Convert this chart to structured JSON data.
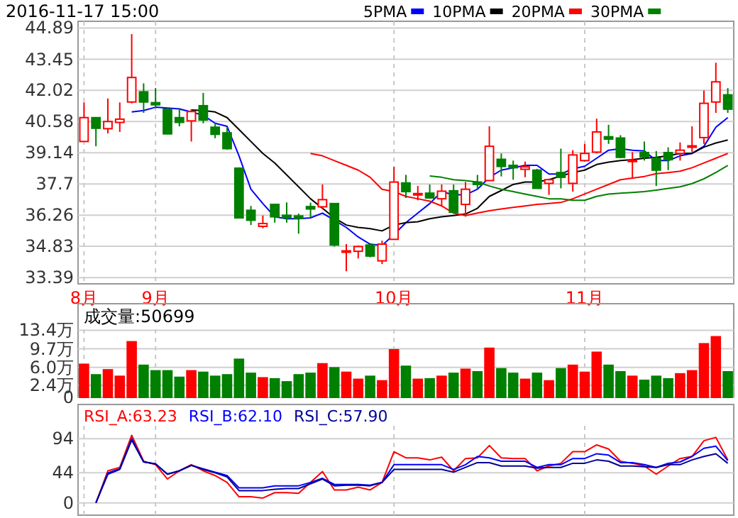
{
  "chart_data": [
    {
      "type": "candlestick",
      "title": "2016-11-17 15:00",
      "legend": "top",
      "grid": true,
      "categories": [
        "8月",
        null,
        null,
        null,
        null,
        null,
        "9月",
        null,
        null,
        null,
        null,
        null,
        null,
        null,
        null,
        null,
        null,
        null,
        null,
        null,
        null,
        null,
        null,
        null,
        null,
        null,
        "10月",
        null,
        null,
        null,
        null,
        null,
        null,
        null,
        null,
        null,
        null,
        null,
        null,
        null,
        null,
        null,
        "11月",
        null,
        null,
        null,
        null,
        null,
        null,
        null,
        null,
        null,
        null,
        null,
        null
      ],
      "ylim": [
        33.1,
        45.2
      ],
      "yticks": [
        33.39,
        34.83,
        36.26,
        37.7,
        39.14,
        40.58,
        42.02,
        43.45,
        44.89
      ],
      "ohlc": [
        [
          39.66,
          41.46,
          39.66,
          40.76
        ],
        [
          40.76,
          40.76,
          39.44,
          40.27
        ],
        [
          40.25,
          41.64,
          40.03,
          40.58
        ],
        [
          40.54,
          41.46,
          40.1,
          40.69
        ],
        [
          41.48,
          44.61,
          41.42,
          42.61
        ],
        [
          41.95,
          42.34,
          40.98,
          41.48
        ],
        [
          41.45,
          42.12,
          41.2,
          41.35
        ],
        [
          41.15,
          41.2,
          39.99,
          40.01
        ],
        [
          40.76,
          41.2,
          40.36,
          40.54
        ],
        [
          40.61,
          41.15,
          39.66,
          41.04
        ],
        [
          41.31,
          41.9,
          40.5,
          40.65
        ],
        [
          40.32,
          40.5,
          39.81,
          39.99
        ],
        [
          40.06,
          40.32,
          39.28,
          39.33
        ],
        [
          38.43,
          38.47,
          36.14,
          36.14
        ],
        [
          36.49,
          36.69,
          35.81,
          36.03
        ],
        [
          35.75,
          36.25,
          35.66,
          35.88
        ],
        [
          36.76,
          36.76,
          35.92,
          36.19
        ],
        [
          36.26,
          36.85,
          35.92,
          36.15
        ],
        [
          36.23,
          36.34,
          35.41,
          36.12
        ],
        [
          36.66,
          36.84,
          36.14,
          36.55
        ],
        [
          36.65,
          37.68,
          36.54,
          36.98
        ],
        [
          36.8,
          36.8,
          34.82,
          34.89
        ],
        [
          34.58,
          34.93,
          33.68,
          34.62
        ],
        [
          34.6,
          34.87,
          34.27,
          34.82
        ],
        [
          34.89,
          34.93,
          34.32,
          34.38
        ],
        [
          34.16,
          35.09,
          34.01,
          34.93
        ],
        [
          35.15,
          38.49,
          35.15,
          37.79
        ],
        [
          37.75,
          38.12,
          37.06,
          37.35
        ],
        [
          37.22,
          37.61,
          36.95,
          37.26
        ],
        [
          37.28,
          37.68,
          37.02,
          37.06
        ],
        [
          37.02,
          37.68,
          36.69,
          37.37
        ],
        [
          37.39,
          37.68,
          36.36,
          36.4
        ],
        [
          36.76,
          37.79,
          36.2,
          37.46
        ],
        [
          37.79,
          38.12,
          37.46,
          37.68
        ],
        [
          37.86,
          40.36,
          37.86,
          39.44
        ],
        [
          38.84,
          39.11,
          38.05,
          38.51
        ],
        [
          38.56,
          38.78,
          37.9,
          38.45
        ],
        [
          38.38,
          38.73,
          38.01,
          38.49
        ],
        [
          38.34,
          38.4,
          37.5,
          37.5
        ],
        [
          37.73,
          37.95,
          37.2,
          37.9
        ],
        [
          38.23,
          39.33,
          37.5,
          38.01
        ],
        [
          37.73,
          39.26,
          37.35,
          39.04
        ],
        [
          38.78,
          39.55,
          38.73,
          39.11
        ],
        [
          39.17,
          40.71,
          39.11,
          40.1
        ],
        [
          39.88,
          40.43,
          39.55,
          39.77
        ],
        [
          39.82,
          39.95,
          38.89,
          38.93
        ],
        [
          38.76,
          39.17,
          37.94,
          38.8
        ],
        [
          39.15,
          39.66,
          38.78,
          38.95
        ],
        [
          38.89,
          39.22,
          37.61,
          38.34
        ],
        [
          39.15,
          39.39,
          38.34,
          38.82
        ],
        [
          39.11,
          39.62,
          38.78,
          39.26
        ],
        [
          39.42,
          40.36,
          39.17,
          39.46
        ],
        [
          39.84,
          42.01,
          39.55,
          41.42
        ],
        [
          41.48,
          43.29,
          40.98,
          42.41
        ],
        [
          41.81,
          42.12,
          40.98,
          41.15
        ]
      ],
      "colors": [
        "#ff0000",
        "#008000",
        "#ff0000",
        "#ff0000",
        "#ff0000",
        "#008000",
        "#008000",
        "#008000",
        "#008000",
        "#ff0000",
        "#008000",
        "#008000",
        "#008000",
        "#008000",
        "#008000",
        "#ff0000",
        "#008000",
        "#008000",
        "#008000",
        "#008000",
        "#ff0000",
        "#008000",
        "#ff0000",
        "#ff0000",
        "#008000",
        "#ff0000",
        "#ff0000",
        "#008000",
        "#ff0000",
        "#008000",
        "#ff0000",
        "#008000",
        "#ff0000",
        "#008000",
        "#ff0000",
        "#008000",
        "#008000",
        "#ff0000",
        "#008000",
        "#ff0000",
        "#008000",
        "#ff0000",
        "#ff0000",
        "#ff0000",
        "#008000",
        "#008000",
        "#ff0000",
        "#008000",
        "#008000",
        "#008000",
        "#ff0000",
        "#ff0000",
        "#ff0000",
        "#ff0000",
        "#008000"
      ],
      "series": [
        {
          "name": "5PMA",
          "type": "line",
          "color": "#0000ff",
          "values": [
            null,
            null,
            null,
            null,
            41.02,
            41.09,
            41.24,
            41.2,
            41.16,
            41.02,
            40.87,
            40.5,
            40.36,
            39.0,
            37.46,
            36.8,
            36.19,
            36.1,
            36.1,
            36.14,
            36.36,
            36.03,
            35.7,
            35.26,
            34.93,
            34.87,
            35.37,
            35.92,
            36.36,
            36.8,
            37.35,
            37.2,
            37.2,
            37.46,
            38.01,
            38.34,
            38.45,
            38.56,
            38.56,
            38.16,
            38.16,
            38.4,
            38.52,
            38.89,
            39.26,
            39.33,
            39.26,
            39.22,
            38.78,
            38.78,
            39.0,
            39.11,
            39.44,
            40.32,
            40.76
          ]
        },
        {
          "name": "10PMA",
          "type": "line",
          "color": "#000000",
          "values": [
            null,
            null,
            null,
            null,
            null,
            null,
            null,
            null,
            null,
            41.11,
            41.09,
            41.02,
            40.76,
            40.21,
            39.66,
            39.11,
            38.67,
            38.12,
            37.57,
            37.02,
            36.58,
            36.14,
            35.81,
            35.7,
            35.64,
            35.54,
            35.81,
            35.92,
            35.96,
            36.1,
            36.19,
            36.25,
            36.32,
            36.58,
            37.13,
            37.4,
            37.68,
            37.79,
            37.79,
            37.9,
            38.07,
            38.23,
            38.34,
            38.6,
            38.71,
            38.78,
            38.82,
            38.89,
            38.93,
            39.0,
            39.11,
            39.11,
            39.4,
            39.59,
            39.73
          ]
        },
        {
          "name": "20PMA",
          "type": "line",
          "color": "#ff0000",
          "values": [
            null,
            null,
            null,
            null,
            null,
            null,
            null,
            null,
            null,
            null,
            null,
            null,
            null,
            null,
            null,
            null,
            null,
            null,
            null,
            39.11,
            39.0,
            38.78,
            38.56,
            38.34,
            38.01,
            37.46,
            37.35,
            37.13,
            37.02,
            36.91,
            36.69,
            36.36,
            36.25,
            36.36,
            36.47,
            36.55,
            36.62,
            36.69,
            36.76,
            36.8,
            36.85,
            37.02,
            37.24,
            37.46,
            37.68,
            37.9,
            37.97,
            38.05,
            38.18,
            38.23,
            38.29,
            38.45,
            38.67,
            38.89,
            39.11
          ]
        },
        {
          "name": "30PMA",
          "type": "line",
          "color": "#008000",
          "values": [
            null,
            null,
            null,
            null,
            null,
            null,
            null,
            null,
            null,
            null,
            null,
            null,
            null,
            null,
            null,
            null,
            null,
            null,
            null,
            null,
            null,
            null,
            null,
            null,
            null,
            null,
            null,
            null,
            null,
            38.07,
            38.01,
            37.9,
            37.86,
            37.79,
            37.61,
            37.46,
            37.35,
            37.24,
            37.13,
            37.02,
            37.02,
            36.95,
            36.95,
            37.13,
            37.24,
            37.28,
            37.31,
            37.35,
            37.42,
            37.5,
            37.57,
            37.72,
            37.94,
            38.23,
            38.56
          ]
        }
      ]
    },
    {
      "type": "bar",
      "grid": true,
      "tick_labels": "y",
      "annotations": [
        "成交量:50699"
      ],
      "categories": [
        null,
        null,
        null,
        null,
        null,
        null,
        null,
        null,
        null,
        null,
        null,
        null,
        null,
        null,
        null,
        null,
        null,
        null,
        null,
        null,
        null,
        null,
        null,
        null,
        null,
        null,
        null,
        null,
        null,
        null,
        null,
        null,
        null,
        null,
        null,
        null,
        null,
        null,
        null,
        null,
        null,
        null,
        null,
        null,
        null,
        null,
        null,
        null,
        null,
        null,
        null,
        null,
        null,
        null,
        null
      ],
      "ylim": [
        0,
        13.6
      ],
      "yticks": [
        0,
        {
          "value": 2.4,
          "label": "2.4万"
        },
        {
          "value": 6.0,
          "label": "6.0万"
        },
        {
          "value": 9.7,
          "label": "9.7万"
        },
        {
          "value": 13.4,
          "label": "13.4万"
        }
      ],
      "values": [
        6.6,
        4.5,
        5.5,
        4.2,
        11.1,
        6.4,
        5.3,
        5.3,
        4.0,
        5.3,
        5.0,
        4.2,
        4.5,
        7.6,
        4.8,
        3.9,
        3.7,
        3.1,
        4.5,
        4.8,
        6.7,
        5.9,
        5.0,
        3.6,
        4.2,
        3.3,
        9.5,
        6.2,
        3.6,
        3.7,
        4.2,
        4.8,
        5.6,
        5.1,
        9.8,
        5.7,
        4.8,
        3.6,
        4.8,
        3.3,
        5.7,
        6.4,
        5.0,
        9.0,
        6.4,
        5.1,
        4.2,
        3.4,
        4.2,
        3.7,
        4.7,
        5.3,
        10.7,
        12.1,
        5.1
      ],
      "colors": [
        "#ff0000",
        "#008000",
        "#ff0000",
        "#ff0000",
        "#ff0000",
        "#008000",
        "#008000",
        "#008000",
        "#008000",
        "#ff0000",
        "#008000",
        "#008000",
        "#008000",
        "#008000",
        "#008000",
        "#ff0000",
        "#008000",
        "#008000",
        "#008000",
        "#008000",
        "#ff0000",
        "#008000",
        "#ff0000",
        "#ff0000",
        "#008000",
        "#ff0000",
        "#ff0000",
        "#008000",
        "#ff0000",
        "#008000",
        "#ff0000",
        "#008000",
        "#ff0000",
        "#008000",
        "#ff0000",
        "#008000",
        "#008000",
        "#ff0000",
        "#008000",
        "#ff0000",
        "#008000",
        "#ff0000",
        "#ff0000",
        "#ff0000",
        "#008000",
        "#008000",
        "#ff0000",
        "#008000",
        "#008000",
        "#008000",
        "#ff0000",
        "#ff0000",
        "#ff0000",
        "#ff0000",
        "#008000"
      ]
    },
    {
      "type": "line",
      "grid": true,
      "tick_labels": "y",
      "legend": "top left",
      "categories": [
        null,
        null,
        null,
        null,
        null,
        null,
        null,
        null,
        null,
        null,
        null,
        null,
        null,
        null,
        null,
        null,
        null,
        null,
        null,
        null,
        null,
        null,
        null,
        null,
        null,
        null,
        null,
        null,
        null,
        null,
        null,
        null,
        null,
        null,
        null,
        null,
        null,
        null,
        null,
        null,
        null,
        null,
        null,
        null,
        null,
        null,
        null,
        null,
        null,
        null,
        null,
        null,
        null,
        null,
        null
      ],
      "ylim": [
        -18,
        113
      ],
      "yticks": [
        0,
        44,
        94
      ],
      "series": [
        {
          "name": "RSI_A:63.23",
          "color": "#ff0000",
          "values": [
            null,
            0,
            47,
            52,
            99,
            61,
            56,
            35,
            47,
            56,
            47,
            40,
            30,
            9,
            9,
            7,
            15,
            15,
            14,
            30,
            46,
            19,
            19,
            23,
            19,
            30,
            75,
            66,
            66,
            63,
            67,
            47,
            65,
            66,
            84,
            66,
            65,
            65,
            47,
            54,
            58,
            75,
            75,
            85,
            79,
            61,
            58,
            54,
            42,
            54,
            65,
            68,
            91,
            96,
            63
          ]
        },
        {
          "name": "RSI_B:62.10",
          "color": "#0000ff",
          "values": [
            null,
            0,
            44,
            50,
            94,
            60,
            57,
            42,
            47,
            55,
            50,
            45,
            40,
            22,
            22,
            22,
            25,
            25,
            25,
            30,
            36,
            27,
            27,
            27,
            26,
            30,
            56,
            56,
            56,
            56,
            56,
            49,
            56,
            68,
            66,
            61,
            61,
            61,
            52,
            56,
            56,
            65,
            65,
            72,
            70,
            59,
            59,
            56,
            52,
            58,
            60,
            68,
            80,
            83,
            62
          ]
        },
        {
          "name": "RSI_C:57.90",
          "color": "#000099",
          "values": [
            null,
            0,
            42,
            49,
            92,
            60,
            57,
            42,
            47,
            55,
            49,
            44,
            38,
            18,
            18,
            18,
            20,
            21,
            21,
            28,
            35,
            25,
            26,
            26,
            25,
            30,
            49,
            49,
            49,
            49,
            49,
            45,
            52,
            59,
            59,
            54,
            54,
            54,
            51,
            52,
            52,
            58,
            58,
            63,
            61,
            54,
            54,
            53,
            52,
            56,
            56,
            63,
            68,
            72,
            58
          ]
        }
      ]
    }
  ]
}
